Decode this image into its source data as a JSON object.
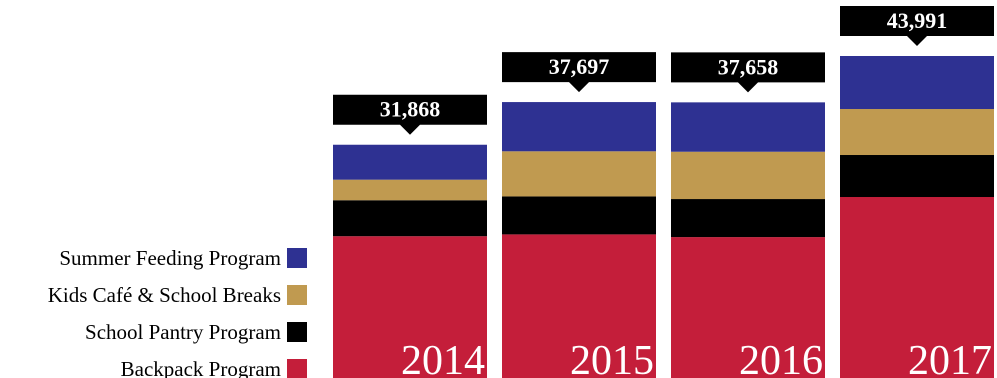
{
  "chart_data": {
    "type": "bar",
    "stacked": true,
    "categories": [
      "2014",
      "2015",
      "2016",
      "2017"
    ],
    "series": [
      {
        "name": "Backpack Program",
        "color": "#c41e3a",
        "values": [
          19370,
          19620,
          19250,
          24727
        ]
      },
      {
        "name": "School Pantry Program",
        "color": "#000000",
        "values": [
          4915,
          5185,
          5199,
          5738
        ]
      },
      {
        "name": "Kids Café & School Breaks",
        "color": "#c09a50",
        "values": [
          2810,
          6166,
          6463,
          6284
        ]
      },
      {
        "name": "Summer Feeding Program",
        "color": "#2e3192",
        "values": [
          4773,
          6726,
          6746,
          7242
        ]
      }
    ],
    "totals": [
      31868,
      37697,
      37658,
      43991
    ],
    "total_labels": [
      "31,868",
      "37,697",
      "37,658",
      "43,991"
    ]
  }
}
